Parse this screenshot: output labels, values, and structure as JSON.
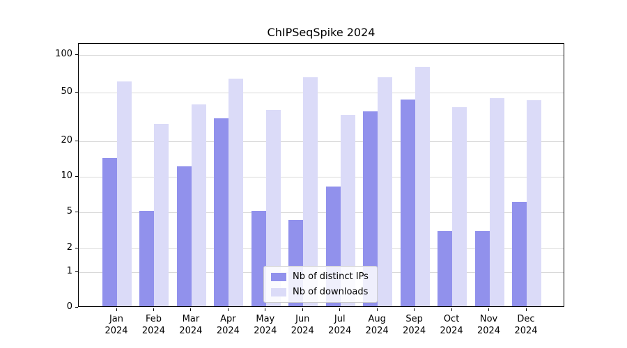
{
  "chart_data": {
    "type": "bar",
    "title": "ChIPSeqSpike 2024",
    "categories": [
      "Jan 2024",
      "Feb 2024",
      "Mar 2024",
      "Apr 2024",
      "May 2024",
      "Jun 2024",
      "Jul 2024",
      "Aug 2024",
      "Sep 2024",
      "Oct 2024",
      "Nov 2024",
      "Dec 2024"
    ],
    "series": [
      {
        "name": "Nb of distinct IPs",
        "color": "#9191ec",
        "values": [
          14,
          5,
          12,
          30,
          5,
          4,
          8,
          34,
          43,
          3,
          3,
          6
        ]
      },
      {
        "name": "Nb of downloads",
        "color": "#dbdbf8",
        "values": [
          60,
          27,
          39,
          63,
          35,
          65,
          32,
          65,
          78,
          37,
          44,
          42
        ]
      }
    ],
    "xlabel": "",
    "ylabel": "",
    "yscale": "symlog",
    "yticks": [
      0,
      1,
      2,
      5,
      10,
      20,
      50,
      100
    ],
    "ylim": [
      0,
      115
    ],
    "grid": "horizontal",
    "legend_position": "lower center",
    "colors": {
      "bar_dark": "#9191ec",
      "bar_light": "#dbdbf8",
      "gridline": "#d9d9d9",
      "axis": "#000000",
      "background": "#ffffff"
    }
  }
}
